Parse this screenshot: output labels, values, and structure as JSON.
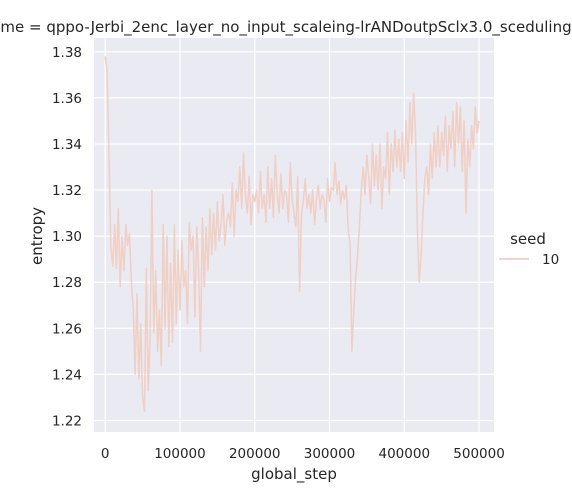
{
  "chart_data": {
    "type": "line",
    "title": "me = qppo-Jerbi_2enc_layer_no_input_scaleing-lrANDoutpSclx3.0_sceduling",
    "xlabel": "global_step",
    "ylabel": "entropy",
    "xlim": [
      -15000,
      520000
    ],
    "ylim": [
      1.215,
      1.386
    ],
    "xticks": [
      0,
      100000,
      200000,
      300000,
      400000,
      500000
    ],
    "xtick_labels": [
      "0",
      "100000",
      "200000",
      "300000",
      "400000",
      "500000"
    ],
    "yticks": [
      1.22,
      1.24,
      1.26,
      1.28,
      1.3,
      1.32,
      1.34,
      1.36,
      1.38
    ],
    "ytick_labels": [
      "1.22",
      "1.24",
      "1.26",
      "1.28",
      "1.30",
      "1.32",
      "1.34",
      "1.36",
      "1.38"
    ],
    "grid": true,
    "background": "#eaeaf2",
    "gridline_color": "#ffffff",
    "legend": {
      "title": "seed",
      "position": "right",
      "entries": [
        {
          "label": "10",
          "color": "#f0cfc4"
        }
      ]
    },
    "series": [
      {
        "name": "10",
        "color": "#f0cfc4",
        "x": [
          0,
          2500,
          5000,
          7500,
          10000,
          12500,
          15000,
          17500,
          20000,
          22500,
          25000,
          27500,
          30000,
          32500,
          35000,
          37500,
          40000,
          42500,
          45000,
          47500,
          50000,
          52500,
          55000,
          57500,
          60000,
          62500,
          65000,
          67500,
          70000,
          72500,
          75000,
          77500,
          80000,
          82500,
          85000,
          87500,
          90000,
          92500,
          95000,
          97500,
          100000,
          102500,
          105000,
          107500,
          110000,
          112500,
          115000,
          117500,
          120000,
          122500,
          125000,
          127500,
          130000,
          132500,
          135000,
          137500,
          140000,
          142500,
          145000,
          147500,
          150000,
          152500,
          155000,
          157500,
          160000,
          162500,
          165000,
          167500,
          170000,
          172500,
          175000,
          177500,
          180000,
          182500,
          185000,
          187500,
          190000,
          192500,
          195000,
          197500,
          200000,
          202500,
          205000,
          207500,
          210000,
          212500,
          215000,
          217500,
          220000,
          222500,
          225000,
          227500,
          230000,
          232500,
          235000,
          237500,
          240000,
          242500,
          245000,
          247500,
          250000,
          252500,
          255000,
          257500,
          260000,
          262500,
          265000,
          267500,
          270000,
          272500,
          275000,
          277500,
          280000,
          282500,
          285000,
          287500,
          290000,
          292500,
          295000,
          297500,
          300000,
          302500,
          305000,
          307500,
          310000,
          312500,
          315000,
          317500,
          320000,
          322500,
          325000,
          327500,
          330000,
          332500,
          335000,
          337500,
          340000,
          342500,
          345000,
          347500,
          350000,
          352500,
          355000,
          357500,
          360000,
          362500,
          365000,
          367500,
          370000,
          372500,
          375000,
          377500,
          380000,
          382500,
          385000,
          387500,
          390000,
          392500,
          395000,
          397500,
          400000,
          402500,
          405000,
          407500,
          410000,
          412500,
          415000,
          417500,
          420000,
          422500,
          425000,
          427500,
          430000,
          432500,
          435000,
          437500,
          440000,
          442500,
          445000,
          447500,
          450000,
          452500,
          455000,
          457500,
          460000,
          462500,
          465000,
          467500,
          470000,
          472500,
          475000,
          477500,
          480000,
          482500,
          485000,
          487500,
          490000,
          492500,
          495000,
          497500,
          500000
        ],
        "y": [
          1.378,
          1.372,
          1.335,
          1.296,
          1.287,
          1.305,
          1.286,
          1.312,
          1.278,
          1.3,
          1.285,
          1.305,
          1.296,
          1.301,
          1.28,
          1.268,
          1.24,
          1.275,
          1.238,
          1.262,
          1.23,
          1.224,
          1.286,
          1.233,
          1.256,
          1.32,
          1.258,
          1.285,
          1.25,
          1.268,
          1.244,
          1.305,
          1.26,
          1.3,
          1.252,
          1.288,
          1.254,
          1.305,
          1.262,
          1.294,
          1.268,
          1.298,
          1.278,
          1.285,
          1.262,
          1.306,
          1.294,
          1.3,
          1.265,
          1.304,
          1.284,
          1.25,
          1.308,
          1.278,
          1.304,
          1.285,
          1.312,
          1.292,
          1.31,
          1.294,
          1.315,
          1.298,
          1.305,
          1.318,
          1.296,
          1.307,
          1.31,
          1.304,
          1.323,
          1.3,
          1.32,
          1.315,
          1.33,
          1.312,
          1.336,
          1.318,
          1.31,
          1.326,
          1.305,
          1.318,
          1.315,
          1.32,
          1.31,
          1.328,
          1.312,
          1.318,
          1.306,
          1.33,
          1.312,
          1.325,
          1.308,
          1.335,
          1.318,
          1.31,
          1.327,
          1.312,
          1.32,
          1.318,
          1.306,
          1.332,
          1.316,
          1.31,
          1.304,
          1.326,
          1.276,
          1.31,
          1.315,
          1.325,
          1.312,
          1.318,
          1.31,
          1.32,
          1.305,
          1.316,
          1.322,
          1.312,
          1.318,
          1.316,
          1.306,
          1.325,
          1.315,
          1.321,
          1.32,
          1.332,
          1.318,
          1.324,
          1.314,
          1.32,
          1.316,
          1.322,
          1.303,
          1.296,
          1.25,
          1.268,
          1.282,
          1.292,
          1.304,
          1.32,
          1.33,
          1.318,
          1.335,
          1.325,
          1.314,
          1.34,
          1.322,
          1.335,
          1.32,
          1.34,
          1.312,
          1.33,
          1.325,
          1.345,
          1.318,
          1.34,
          1.328,
          1.346,
          1.33,
          1.342,
          1.328,
          1.345,
          1.325,
          1.35,
          1.332,
          1.358,
          1.34,
          1.362,
          1.345,
          1.302,
          1.28,
          1.292,
          1.31,
          1.325,
          1.33,
          1.318,
          1.34,
          1.325,
          1.345,
          1.33,
          1.348,
          1.33,
          1.345,
          1.335,
          1.352,
          1.328,
          1.348,
          1.338,
          1.354,
          1.33,
          1.358,
          1.34,
          1.356,
          1.328,
          1.35,
          1.31,
          1.342,
          1.33,
          1.348,
          1.338,
          1.356,
          1.345,
          1.35
        ]
      }
    ]
  }
}
